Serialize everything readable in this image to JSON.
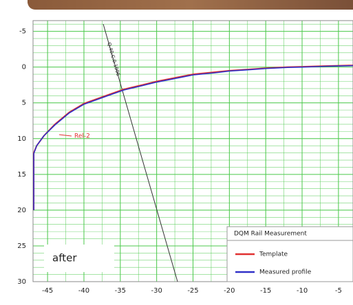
{
  "chart_data": {
    "type": "line",
    "legend_title": "DQM Rail Measurement",
    "annotations": [
      "Rel-2",
      "after",
      "Q.40.C.0.1996"
    ],
    "xlim": [
      -47,
      -3
    ],
    "ylim": [
      -6.5,
      30
    ],
    "y_inverted": true,
    "xticks": [
      -45,
      -40,
      -35,
      -30,
      -25,
      -20,
      -15,
      -10,
      -5
    ],
    "yticks": [
      -5,
      0,
      5,
      10,
      15,
      20,
      25,
      30
    ],
    "grid": true,
    "grid_color": "#4cc94c",
    "minor_grid": {
      "x": 2.5,
      "y": 1
    },
    "legend": "lower right",
    "series": [
      {
        "name": "Template",
        "color": "#e03030",
        "x": [
          -46.9,
          -46.9,
          -46.5,
          -45.5,
          -44,
          -42,
          -40,
          -37,
          -34.5,
          -32,
          -30,
          -27,
          -25,
          -22,
          -20,
          -17,
          -15,
          -12,
          -10,
          -7,
          -5,
          -3
        ],
        "values": [
          20,
          12,
          11,
          9.6,
          8,
          6.3,
          5.1,
          4,
          3.1,
          2.5,
          2,
          1.4,
          1,
          0.7,
          0.5,
          0.3,
          0.15,
          0,
          -0.05,
          -0.15,
          -0.2,
          -0.25
        ]
      },
      {
        "name": "Measured profile",
        "color": "#3030c8",
        "x": [
          -46.9,
          -46.9,
          -46.5,
          -45.5,
          -44,
          -42,
          -40,
          -37,
          -34.5,
          -32,
          -30,
          -27,
          -25,
          -22,
          -20,
          -17,
          -15,
          -12,
          -10,
          -7,
          -5,
          -3
        ],
        "values": [
          20,
          12.1,
          11,
          9.6,
          8.1,
          6.4,
          5.2,
          4.1,
          3.2,
          2.6,
          2.1,
          1.5,
          1.1,
          0.8,
          0.55,
          0.35,
          0.2,
          0.05,
          0,
          -0.1,
          -0.15,
          -0.2
        ]
      }
    ]
  }
}
